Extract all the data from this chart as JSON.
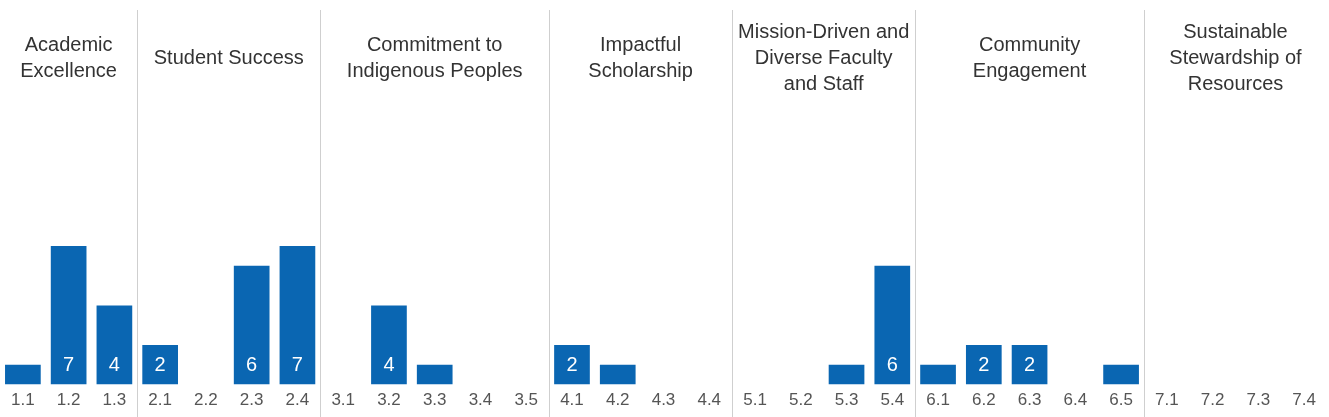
{
  "chart_data": {
    "type": "bar",
    "categories": [
      "1.1",
      "1.2",
      "1.3",
      "2.1",
      "2.2",
      "2.3",
      "2.4",
      "3.1",
      "3.2",
      "3.3",
      "3.4",
      "3.5",
      "4.1",
      "4.2",
      "4.3",
      "4.4",
      "5.1",
      "5.2",
      "5.3",
      "5.4",
      "6.1",
      "6.2",
      "6.3",
      "6.4",
      "6.5",
      "7.1",
      "7.2",
      "7.3",
      "7.4"
    ],
    "values": [
      1,
      7,
      4,
      2,
      0,
      6,
      7,
      0,
      4,
      1,
      0,
      0,
      2,
      1,
      0,
      0,
      0,
      0,
      1,
      6,
      1,
      2,
      2,
      0,
      1,
      0,
      0,
      0,
      0
    ],
    "value_labels": [
      null,
      "7",
      "4",
      "2",
      null,
      "6",
      "7",
      null,
      "4",
      null,
      null,
      null,
      "2",
      null,
      null,
      null,
      null,
      null,
      null,
      "6",
      null,
      "2",
      "2",
      null,
      null,
      null,
      null,
      null,
      null
    ],
    "color": "#0a66b2",
    "annotations": [
      "Academic Excellence",
      "Student Success",
      "Commitment to Indigenous Peoples",
      "Impactful Scholarship",
      "Mission-Driven and Diverse Faculty and Staff",
      "Community Engagement",
      "Sustainable Stewardship of Resources"
    ],
    "grid": false,
    "legend": false
  }
}
